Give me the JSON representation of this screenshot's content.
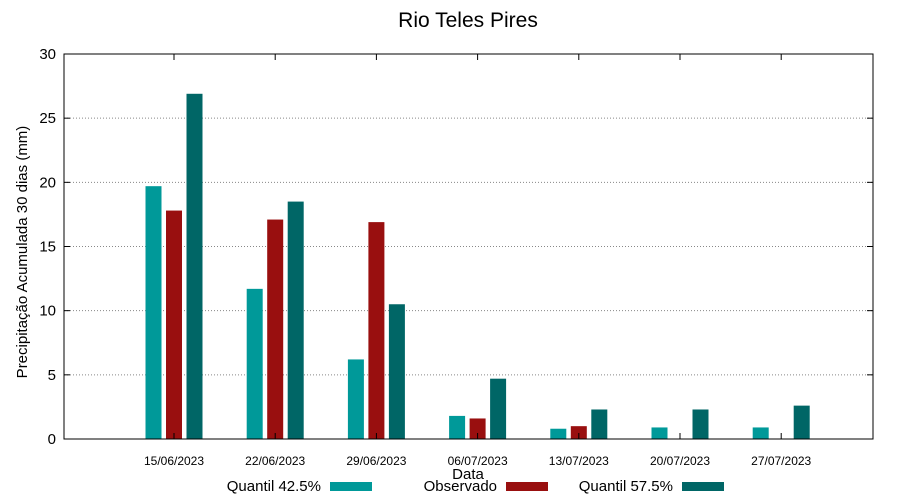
{
  "chart_data": {
    "type": "bar",
    "title": "Rio Teles Pires",
    "xlabel": "Data",
    "ylabel": "Precipitação Acumulada 30 dias (mm)",
    "ylim": [
      0,
      30
    ],
    "yticks": [
      0,
      5,
      10,
      15,
      20,
      25,
      30
    ],
    "grid": "horizontal dotted",
    "legend_position": "bottom",
    "categories": [
      "15/06/2023",
      "22/06/2023",
      "29/06/2023",
      "06/07/2023",
      "13/07/2023",
      "20/07/2023",
      "27/07/2023"
    ],
    "series": [
      {
        "name": "Quantil 42.5%",
        "color": "#009999",
        "values": [
          19.7,
          11.7,
          6.2,
          1.8,
          0.8,
          0.9,
          0.9
        ]
      },
      {
        "name": "Observado",
        "color": "#990f0f",
        "values": [
          17.8,
          17.1,
          16.9,
          1.6,
          1.0,
          null,
          null
        ]
      },
      {
        "name": "Quantil 57.5%",
        "color": "#006666",
        "values": [
          26.9,
          18.5,
          10.5,
          4.7,
          2.3,
          2.3,
          2.6
        ]
      }
    ]
  }
}
